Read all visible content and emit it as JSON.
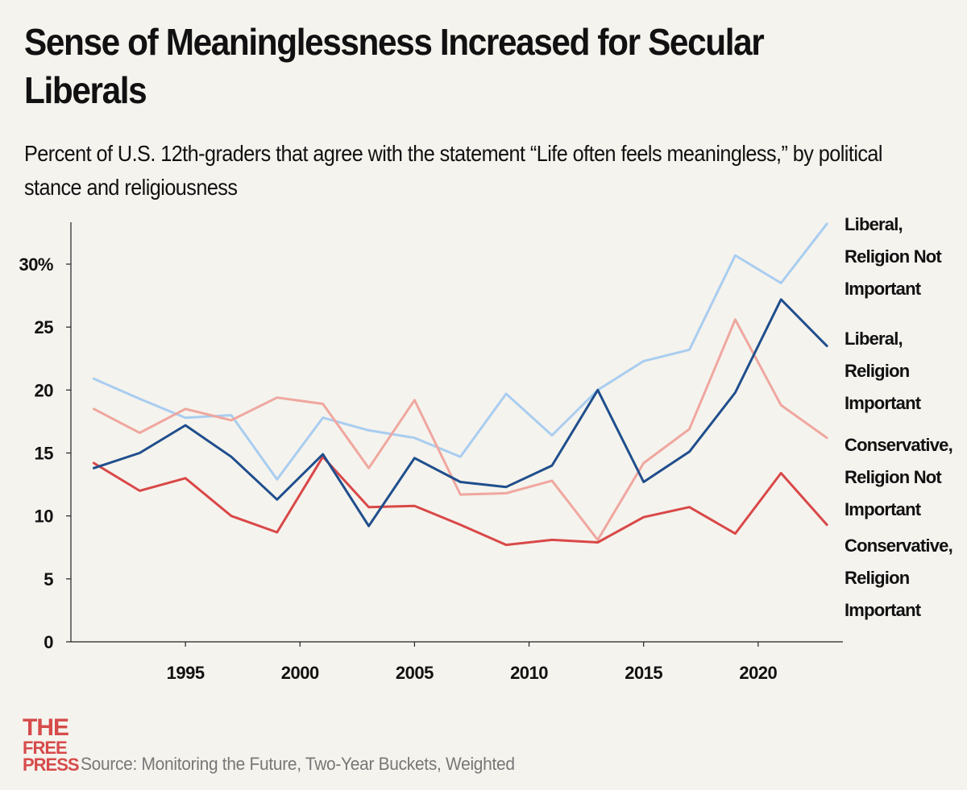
{
  "logo": {
    "line1": "THE",
    "line2": "FREE",
    "line3": "PRESS"
  },
  "source": "Source: Monitoring the Future, Two-Year Buckets, Weighted",
  "chart_data": {
    "type": "line",
    "title": "Sense of Meaninglessness Increased for Secular Liberals",
    "subtitle": "Percent of U.S. 12th-graders that agree with the statement “Life often feels meaningless,” by political stance and religiousness",
    "xlabel": "",
    "ylabel": "",
    "xlim": [
      1990,
      2023.7
    ],
    "ylim": [
      0,
      30
    ],
    "x_ticks": [
      1995,
      2000,
      2005,
      2010,
      2015,
      2020
    ],
    "y_ticks": [
      0,
      5,
      10,
      15,
      20,
      25,
      30
    ],
    "y_tick_labels": [
      "0",
      "5",
      "10",
      "15",
      "20",
      "25",
      "30%"
    ],
    "grid": false,
    "legend_placement": "right, labels at line ends",
    "x": [
      1991,
      1993,
      1995,
      1997,
      1999,
      2001,
      2003,
      2005,
      2007,
      2009,
      2011,
      2013,
      2015,
      2017,
      2019,
      2021,
      2023
    ],
    "series": [
      {
        "name": "Liberal, Religion Not Important",
        "label_lines": [
          "Liberal,",
          "Religion Not",
          "Important"
        ],
        "color": "#a9cdf0",
        "values": [
          20.9,
          19.3,
          17.8,
          18.0,
          12.9,
          17.8,
          16.8,
          16.2,
          14.7,
          19.7,
          16.4,
          20.0,
          22.3,
          23.2,
          30.7,
          28.5,
          33.2
        ]
      },
      {
        "name": "Liberal, Religion Important",
        "label_lines": [
          "Liberal,",
          "Religion",
          "Important"
        ],
        "color": "#1f4e8c",
        "values": [
          13.8,
          15.0,
          17.2,
          14.7,
          11.3,
          14.9,
          9.2,
          14.6,
          12.7,
          12.3,
          14.0,
          20.0,
          12.7,
          15.1,
          19.8,
          27.2,
          23.5
        ]
      },
      {
        "name": "Conservative, Religion Not Important",
        "label_lines": [
          "Conservative,",
          "Religion Not",
          "Important"
        ],
        "color": "#efa79f",
        "values": [
          18.5,
          16.6,
          18.5,
          17.6,
          19.4,
          18.9,
          13.8,
          19.2,
          11.7,
          11.8,
          12.8,
          8.1,
          14.2,
          16.9,
          25.6,
          18.8,
          16.2
        ]
      },
      {
        "name": "Conservative, Religion Important",
        "label_lines": [
          "Conservative,",
          "Religion",
          "Important"
        ],
        "color": "#d94848",
        "values": [
          14.2,
          12.0,
          13.0,
          10.0,
          8.7,
          14.7,
          10.7,
          10.8,
          9.3,
          7.7,
          8.1,
          7.9,
          9.9,
          10.7,
          8.6,
          13.4,
          9.3
        ]
      }
    ]
  }
}
